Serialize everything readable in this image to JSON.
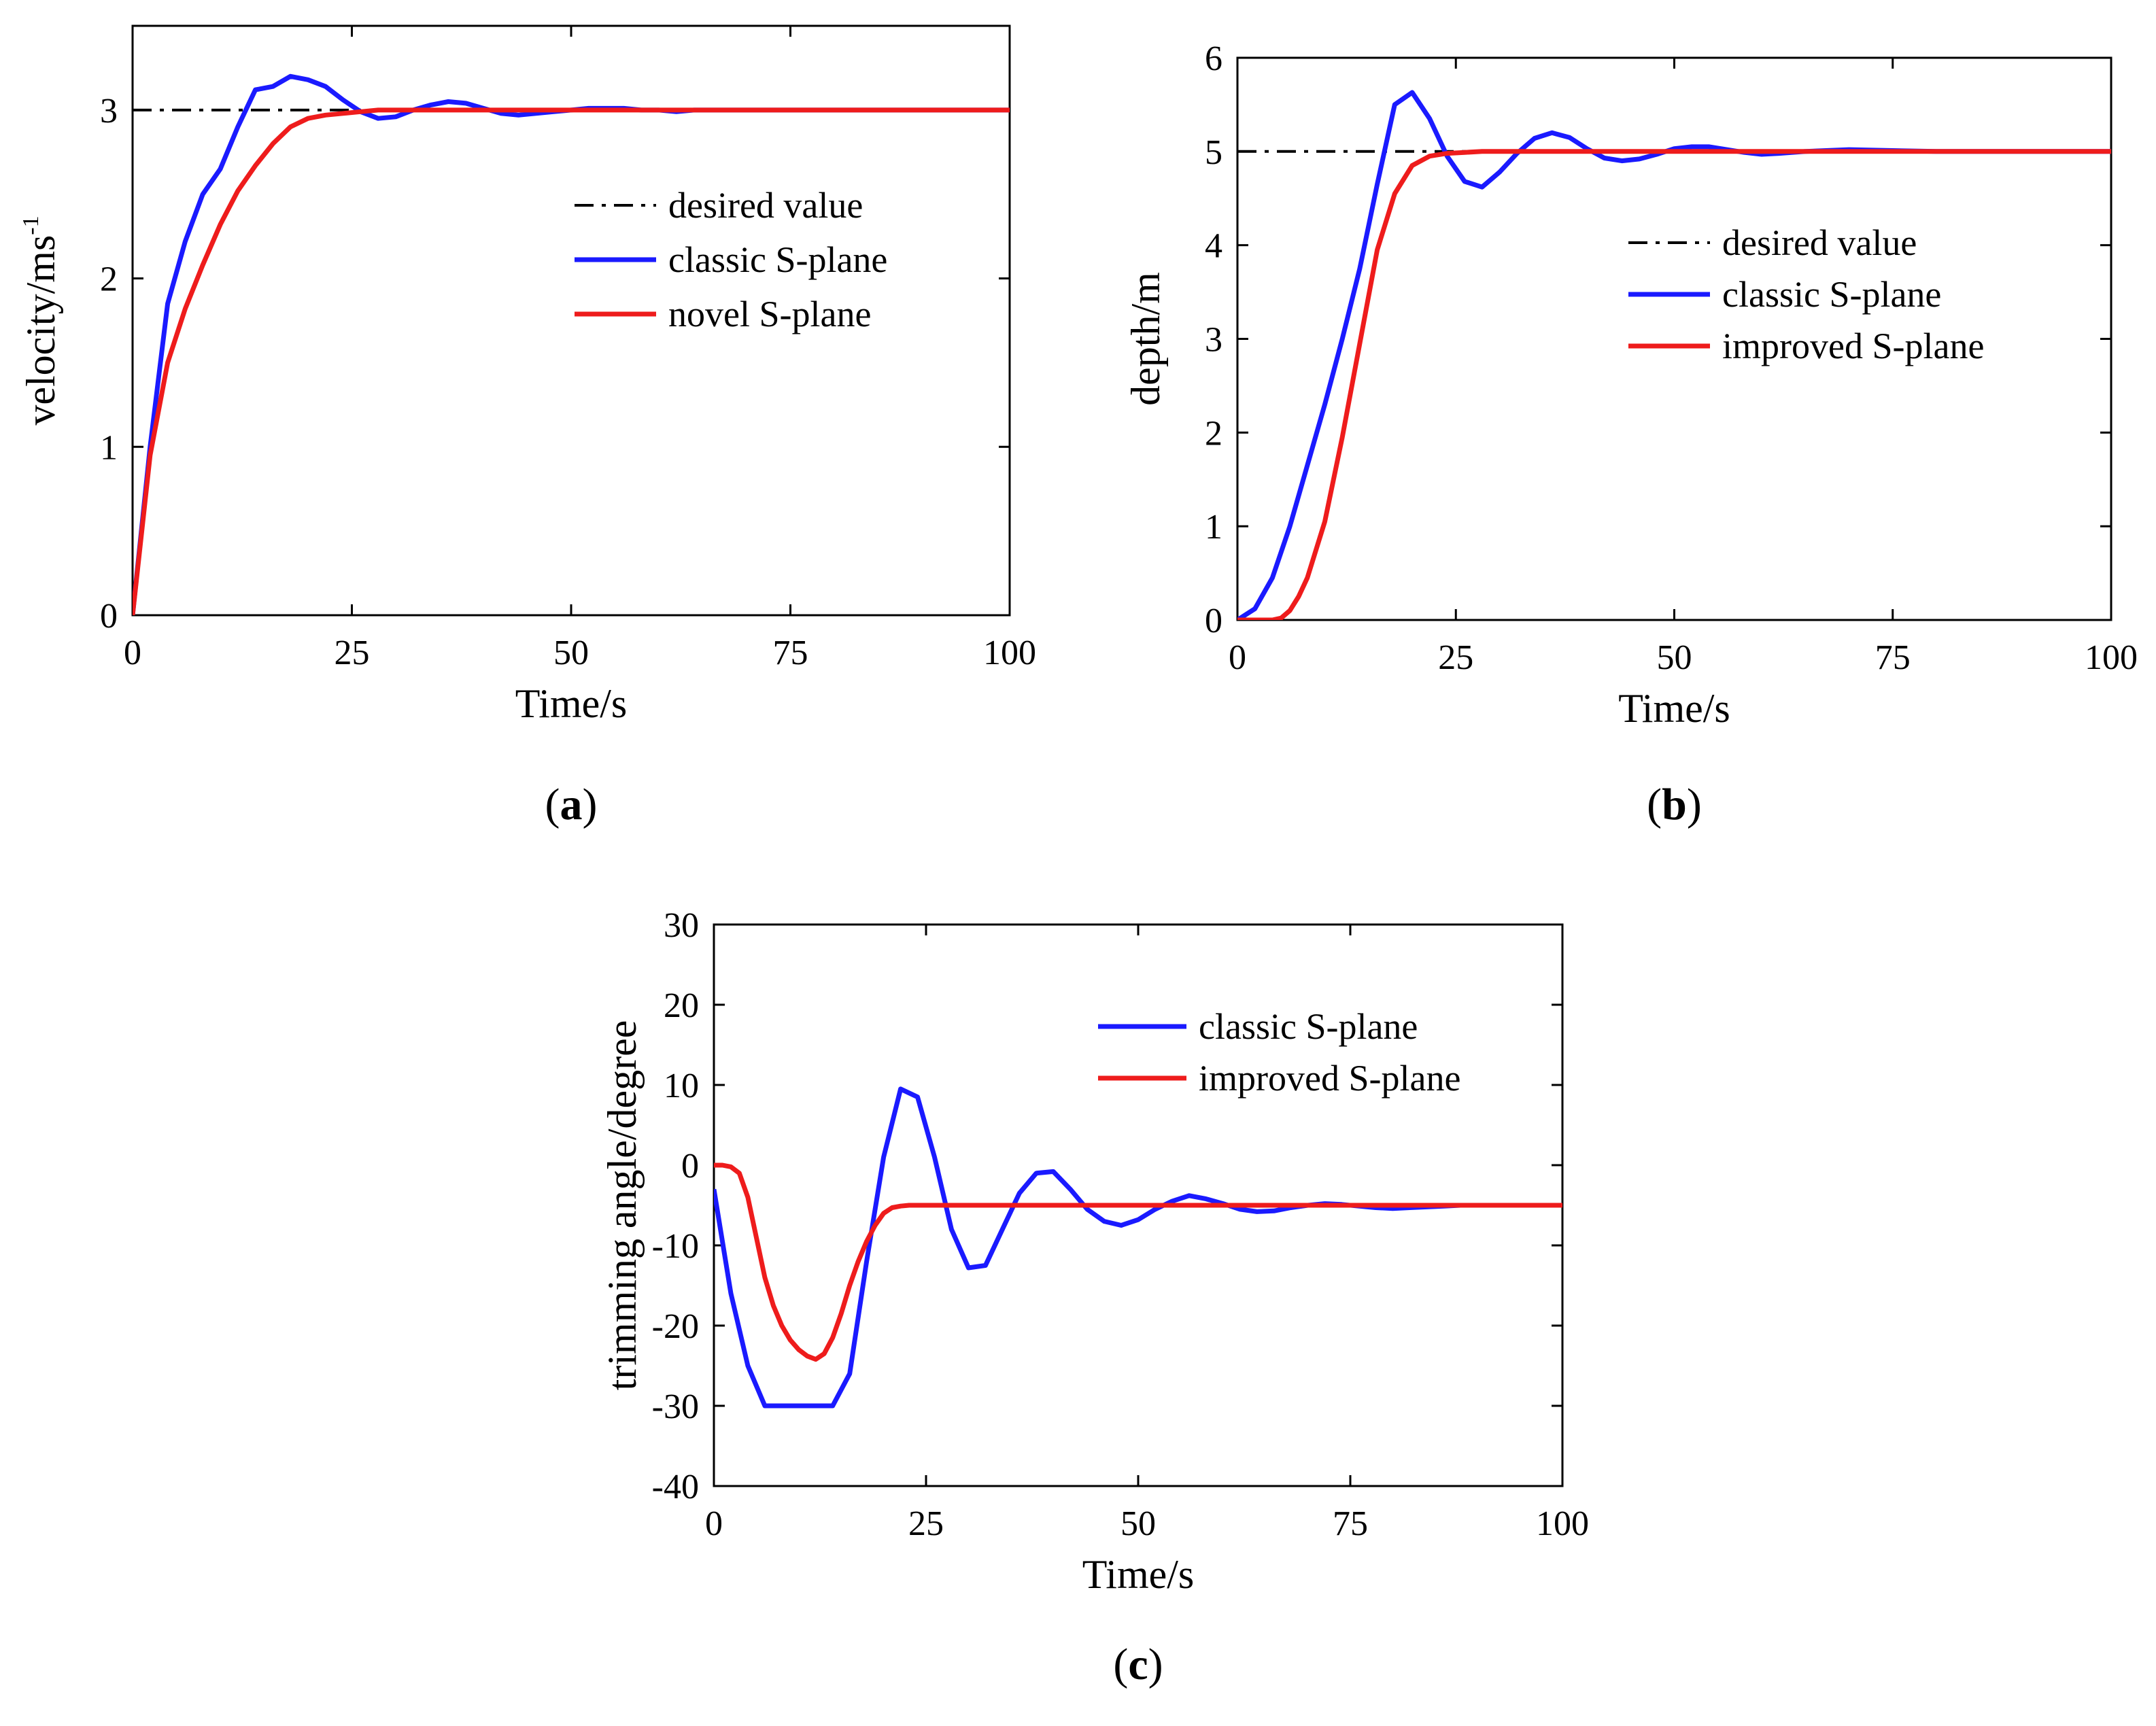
{
  "colors": {
    "blue": "#1a1aff",
    "red": "#ee1c1c",
    "desired": "#000000",
    "axis": "#000000"
  },
  "chart_data": [
    {
      "id": "a",
      "type": "line",
      "panel_label": "a",
      "xlabel": "Time/s",
      "ylabel": "velocity/ms",
      "ylabel_sup": "-1",
      "xlim": [
        0,
        100
      ],
      "ylim": [
        0,
        3.5
      ],
      "xticks": [
        0,
        25,
        50,
        75,
        100
      ],
      "yticks": [
        0,
        1,
        2,
        3
      ],
      "legend_position": "center-right",
      "series": [
        {
          "name": "desired value",
          "style": "dashdot",
          "color": "#000000",
          "x": [
            0,
            100
          ],
          "y": [
            3,
            3
          ]
        },
        {
          "name": "classic S-plane",
          "style": "solid",
          "color": "#1a1aff",
          "x": [
            0,
            2,
            4,
            6,
            8,
            10,
            12,
            14,
            16,
            18,
            20,
            22,
            24,
            26,
            28,
            30,
            32,
            34,
            36,
            38,
            40,
            42,
            44,
            46,
            48,
            50,
            52,
            54,
            56,
            58,
            60,
            62,
            64,
            70,
            80,
            90,
            100
          ],
          "y": [
            0,
            1.0,
            1.85,
            2.22,
            2.5,
            2.65,
            2.9,
            3.12,
            3.14,
            3.2,
            3.18,
            3.14,
            3.06,
            2.99,
            2.95,
            2.96,
            3.0,
            3.03,
            3.05,
            3.04,
            3.01,
            2.98,
            2.97,
            2.98,
            2.99,
            3.0,
            3.01,
            3.01,
            3.01,
            3.0,
            3.0,
            2.99,
            3.0,
            3.0,
            3.0,
            3.0,
            3.0
          ]
        },
        {
          "name": "novel S-plane",
          "style": "solid",
          "color": "#ee1c1c",
          "x": [
            0,
            2,
            4,
            6,
            8,
            10,
            12,
            14,
            16,
            18,
            20,
            22,
            24,
            26,
            28,
            30,
            35,
            40,
            50,
            60,
            70,
            80,
            90,
            100
          ],
          "y": [
            0,
            0.95,
            1.5,
            1.82,
            2.08,
            2.32,
            2.52,
            2.67,
            2.8,
            2.9,
            2.95,
            2.97,
            2.98,
            2.99,
            3.0,
            3.0,
            3.0,
            3.0,
            3.0,
            3.0,
            3.0,
            3.0,
            3.0,
            3.0
          ]
        }
      ]
    },
    {
      "id": "b",
      "type": "line",
      "panel_label": "b",
      "xlabel": "Time/s",
      "ylabel": "depth/m",
      "xlim": [
        0,
        100
      ],
      "ylim": [
        0,
        6
      ],
      "xticks": [
        0,
        25,
        50,
        75,
        100
      ],
      "yticks": [
        0,
        1,
        2,
        3,
        4,
        5,
        6
      ],
      "legend_position": "center-right",
      "series": [
        {
          "name": "desired value",
          "style": "dashdot",
          "color": "#000000",
          "x": [
            0,
            100
          ],
          "y": [
            5,
            5
          ]
        },
        {
          "name": "classic S-plane",
          "style": "solid",
          "color": "#1a1aff",
          "x": [
            0,
            2,
            4,
            6,
            8,
            10,
            12,
            14,
            16,
            18,
            20,
            22,
            24,
            26,
            28,
            30,
            32,
            34,
            36,
            38,
            40,
            42,
            44,
            46,
            48,
            50,
            52,
            54,
            56,
            58,
            60,
            62,
            65,
            70,
            75,
            80,
            85,
            90,
            95,
            100
          ],
          "y": [
            0,
            0.12,
            0.45,
            1.0,
            1.65,
            2.3,
            3.0,
            3.75,
            4.65,
            5.5,
            5.63,
            5.35,
            4.95,
            4.68,
            4.62,
            4.78,
            4.98,
            5.14,
            5.2,
            5.15,
            5.03,
            4.93,
            4.9,
            4.92,
            4.97,
            5.03,
            5.05,
            5.05,
            5.02,
            4.99,
            4.97,
            4.98,
            5.0,
            5.02,
            5.01,
            5.0,
            5.0,
            5.0,
            5.0,
            5.0
          ]
        },
        {
          "name": "improved  S-plane",
          "style": "solid",
          "color": "#ee1c1c",
          "x": [
            0,
            2,
            4,
            5,
            6,
            7,
            8,
            10,
            12,
            14,
            16,
            18,
            20,
            22,
            24,
            26,
            28,
            30,
            35,
            40,
            50,
            60,
            70,
            80,
            90,
            100
          ],
          "y": [
            0,
            0,
            0,
            0.02,
            0.1,
            0.25,
            0.45,
            1.05,
            1.95,
            2.95,
            3.95,
            4.55,
            4.85,
            4.95,
            4.98,
            4.99,
            5.0,
            5.0,
            5.0,
            5.0,
            5.0,
            5.0,
            5.0,
            5.0,
            5.0,
            5.0
          ]
        }
      ]
    },
    {
      "id": "c",
      "type": "line",
      "panel_label": "c",
      "xlabel": "Time/s",
      "ylabel": "trimming angle/degree",
      "xlim": [
        0,
        100
      ],
      "ylim": [
        -40,
        30
      ],
      "xticks": [
        0,
        25,
        50,
        75,
        100
      ],
      "yticks": [
        -40,
        -30,
        -20,
        -10,
        0,
        10,
        20,
        30
      ],
      "legend_position": "top-right",
      "series": [
        {
          "name": "classic S-plane",
          "style": "solid",
          "color": "#1a1aff",
          "x": [
            0,
            2,
            4,
            6,
            8,
            10,
            12,
            14,
            16,
            18,
            20,
            22,
            24,
            26,
            28,
            30,
            32,
            34,
            36,
            38,
            40,
            42,
            44,
            46,
            48,
            50,
            52,
            54,
            56,
            58,
            60,
            62,
            64,
            66,
            68,
            70,
            72,
            74,
            76,
            78,
            80,
            82,
            84,
            86,
            88,
            90,
            95,
            100
          ],
          "y": [
            -3,
            -16,
            -25,
            -30,
            -30,
            -30,
            -30,
            -30,
            -26,
            -12,
            1,
            9.5,
            8.5,
            1,
            -8,
            -12.8,
            -12.5,
            -8,
            -3.5,
            -1,
            -0.8,
            -3,
            -5.5,
            -7,
            -7.5,
            -6.8,
            -5.5,
            -4.5,
            -3.8,
            -4.2,
            -4.8,
            -5.5,
            -5.8,
            -5.7,
            -5.3,
            -5.0,
            -4.8,
            -4.9,
            -5.1,
            -5.3,
            -5.4,
            -5.3,
            -5.2,
            -5.1,
            -5.0,
            -5.0,
            -5.0,
            -5.0
          ]
        },
        {
          "name": "improved  S-plane",
          "style": "solid",
          "color": "#ee1c1c",
          "x": [
            0,
            1,
            2,
            3,
            4,
            5,
            6,
            7,
            8,
            9,
            10,
            11,
            12,
            13,
            14,
            15,
            16,
            17,
            18,
            19,
            20,
            21,
            22,
            23,
            24,
            26,
            30,
            40,
            50,
            60,
            70,
            80,
            90,
            100
          ],
          "y": [
            0,
            0,
            -0.2,
            -1,
            -4,
            -9,
            -14,
            -17.5,
            -20,
            -21.8,
            -23,
            -23.8,
            -24.2,
            -23.5,
            -21.5,
            -18.5,
            -15,
            -12,
            -9.5,
            -7.5,
            -6,
            -5.3,
            -5.1,
            -5.0,
            -5.0,
            -5.0,
            -5.0,
            -5.0,
            -5.0,
            -5.0,
            -5.0,
            -5.0,
            -5.0,
            -5.0
          ]
        }
      ]
    }
  ]
}
